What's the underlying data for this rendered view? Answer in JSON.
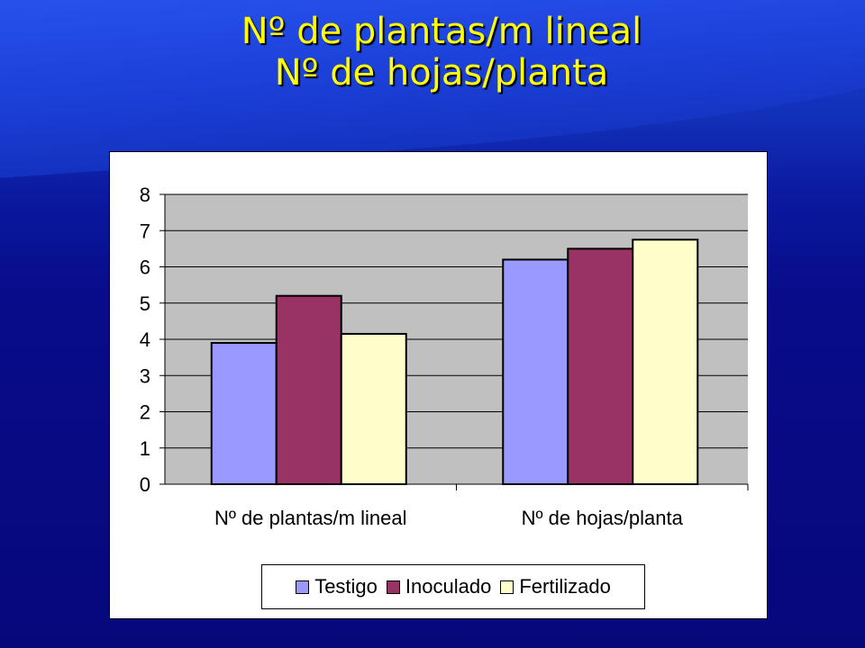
{
  "slide": {
    "title_line1": "Nº de plantas/m lineal",
    "title_line2": "Nº de hojas/planta"
  },
  "colors": {
    "plot_bg": "#c0c0c0",
    "testigo": "#9999ff",
    "inoculado": "#993366",
    "fertilizado": "#ffffcc"
  },
  "chart_data": {
    "type": "bar",
    "categories": [
      "Nº de plantas/m lineal",
      "Nº de hojas/planta"
    ],
    "series": [
      {
        "name": "Testigo",
        "values": [
          3.9,
          6.2
        ],
        "color": "#9999ff"
      },
      {
        "name": "Inoculado",
        "values": [
          5.2,
          6.5
        ],
        "color": "#993366"
      },
      {
        "name": "Fertilizado",
        "values": [
          4.15,
          6.75
        ],
        "color": "#ffffcc"
      }
    ],
    "ylim": [
      0,
      8
    ],
    "yticks": [
      "0",
      "1",
      "2",
      "3",
      "4",
      "5",
      "6",
      "7",
      "8"
    ],
    "grid": true,
    "legend_position": "bottom"
  }
}
